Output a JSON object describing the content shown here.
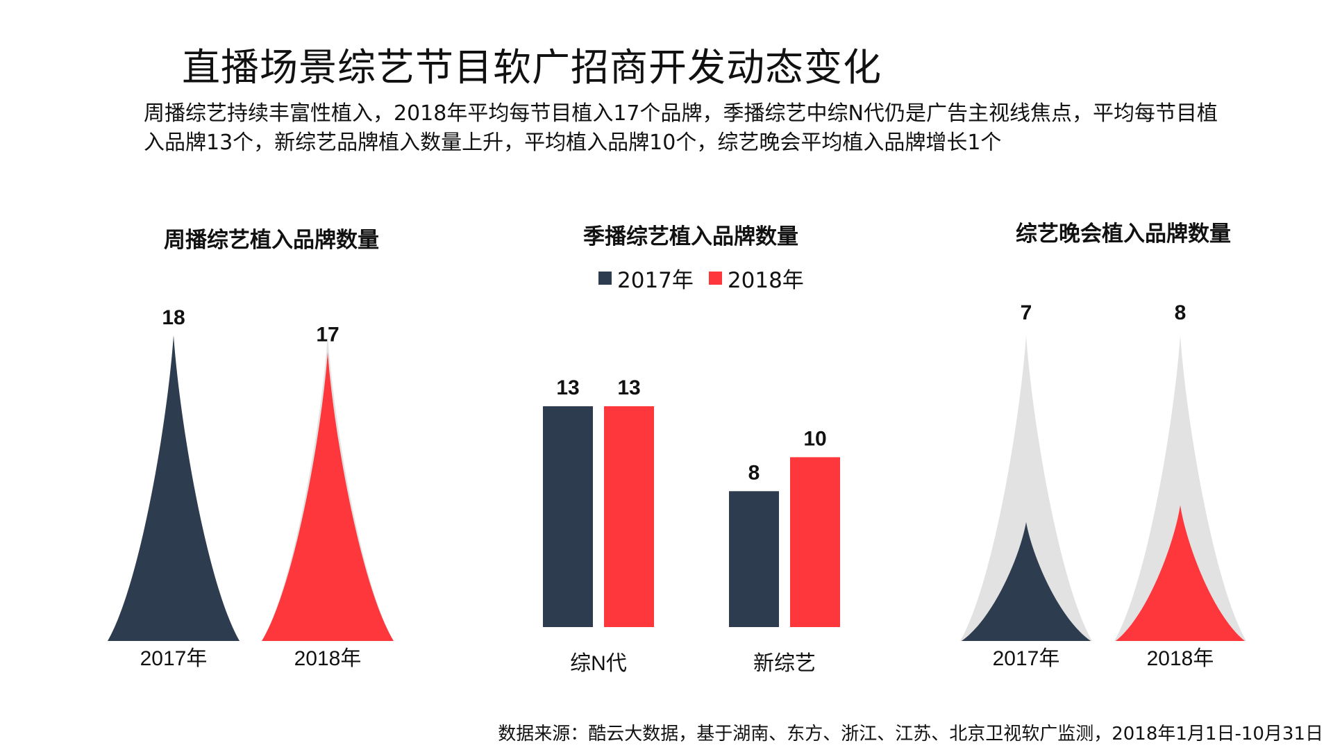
{
  "title": "直播场景综艺节目软广招商开发动态变化",
  "subtitle": "周播综艺持续丰富性植入，2018年平均每节目植入17个品牌，季播综艺中综N代仍是广告主视线焦点，平均每节目植入品牌13个，新综艺品牌植入数量上升，平均植入品牌10个，综艺晚会平均植入品牌增长1个",
  "colors": {
    "y2017": "#2e3c4f",
    "y2018": "#fd373b",
    "ghost": "#e2e2e2"
  },
  "legend": [
    {
      "label": "2017年",
      "color": "#2e3c4f"
    },
    {
      "label": "2018年",
      "color": "#fd373b"
    }
  ],
  "source": "数据来源：酷云大数据，基于湖南、东方、浙江、江苏、北京卫视软广监测，2018年1月1日-10月31日",
  "chart_data": [
    {
      "type": "bar",
      "title": "周播综艺植入品牌数量",
      "categories": [
        "2017年",
        "2018年"
      ],
      "values": [
        18,
        17
      ],
      "ylim": [
        0,
        18
      ],
      "colors": [
        "#2e3c4f",
        "#fd373b"
      ]
    },
    {
      "type": "bar",
      "title": "季播综艺植入品牌数量",
      "categories": [
        "综N代",
        "新综艺"
      ],
      "series": [
        {
          "name": "2017年",
          "values": [
            13,
            8
          ],
          "color": "#2e3c4f"
        },
        {
          "name": "2018年",
          "values": [
            13,
            10
          ],
          "color": "#fd373b"
        }
      ],
      "ylim": [
        0,
        13
      ]
    },
    {
      "type": "bar",
      "title": "综艺晚会植入品牌数量",
      "categories": [
        "2017年",
        "2018年"
      ],
      "values": [
        7,
        8
      ],
      "ylim": [
        0,
        18
      ],
      "colors": [
        "#2e3c4f",
        "#fd373b"
      ]
    }
  ]
}
